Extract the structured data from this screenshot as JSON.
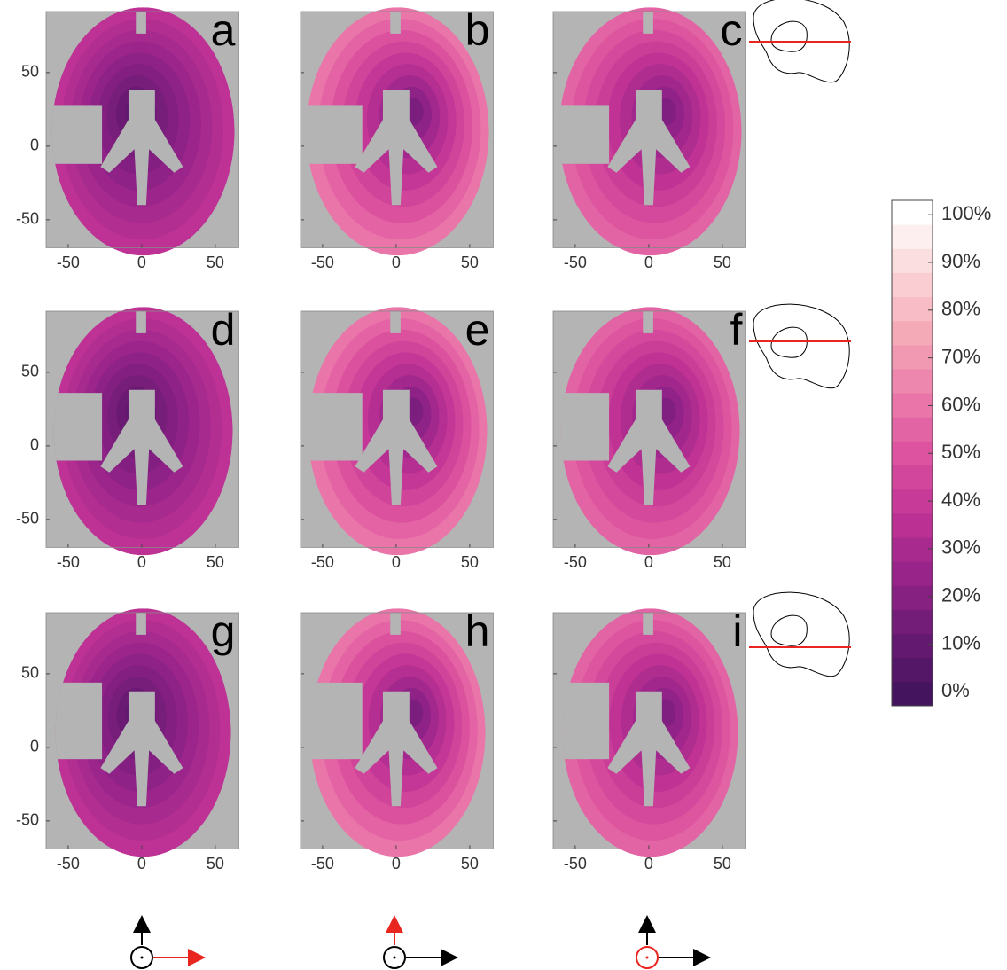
{
  "axes": {
    "xlim": [
      -65,
      66
    ],
    "ylim": [
      -69,
      91.5
    ],
    "xticks": [
      -50,
      0,
      50
    ],
    "yticks": [
      50,
      0,
      -50
    ]
  },
  "panels": [
    {
      "label": "a"
    },
    {
      "label": "b"
    },
    {
      "label": "c"
    },
    {
      "label": "d"
    },
    {
      "label": "e"
    },
    {
      "label": "f"
    },
    {
      "label": "g"
    },
    {
      "label": "h"
    },
    {
      "label": "i"
    }
  ],
  "colorbar": {
    "clim": [
      -2.9,
      103
    ],
    "ticks": [
      {
        "value": 0,
        "label": "0%"
      },
      {
        "value": 10,
        "label": "10%"
      },
      {
        "value": 20,
        "label": "20%"
      },
      {
        "value": 30,
        "label": "30%"
      },
      {
        "value": 40,
        "label": "40%"
      },
      {
        "value": 50,
        "label": "50%"
      },
      {
        "value": 60,
        "label": "60%"
      },
      {
        "value": 70,
        "label": "70%"
      },
      {
        "value": 80,
        "label": "80%"
      },
      {
        "value": 90,
        "label": "90%"
      },
      {
        "value": 100,
        "label": "100%"
      }
    ],
    "colormap": [
      "#45145f",
      "#6a1a74",
      "#98248a",
      "#c23495",
      "#dd539f",
      "#ec7eac",
      "#f5aab8",
      "#fad6d8",
      "#ffffff"
    ]
  }
}
